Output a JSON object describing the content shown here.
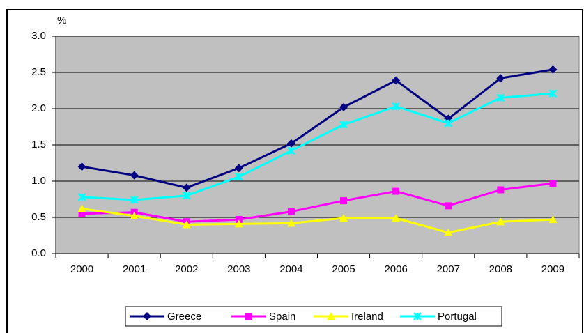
{
  "chart_data": {
    "type": "line",
    "y_label": "%",
    "categories": [
      "2000",
      "2001",
      "2002",
      "2003",
      "2004",
      "2005",
      "2006",
      "2007",
      "2008",
      "2009"
    ],
    "series": [
      {
        "name": "Greece",
        "color": "#000080",
        "marker": "diamond",
        "values": [
          1.2,
          1.08,
          0.91,
          1.18,
          1.52,
          2.02,
          2.39,
          1.86,
          2.42,
          2.54
        ]
      },
      {
        "name": "Spain",
        "color": "#ff00ff",
        "marker": "square",
        "values": [
          0.55,
          0.57,
          0.44,
          0.47,
          0.58,
          0.73,
          0.86,
          0.66,
          0.88,
          0.97
        ]
      },
      {
        "name": "Ireland",
        "color": "#ffff00",
        "marker": "triangle",
        "values": [
          0.62,
          0.52,
          0.4,
          0.41,
          0.42,
          0.49,
          0.49,
          0.29,
          0.44,
          0.47
        ]
      },
      {
        "name": "Portugal",
        "color": "#00ffff",
        "marker": "star",
        "values": [
          0.78,
          0.74,
          0.8,
          1.06,
          1.42,
          1.78,
          2.03,
          1.8,
          2.15,
          2.21
        ]
      }
    ],
    "ylim": [
      0,
      3
    ],
    "yticks": [
      {
        "value": 0,
        "label": "0.0"
      },
      0.5,
      {
        "value": 1,
        "label": "1.0"
      },
      1.5,
      {
        "value": 2,
        "label": "2.0"
      },
      2.5,
      {
        "value": 3,
        "label": "3.0"
      }
    ],
    "grid": true,
    "legend": "bottom",
    "background": "#c0c0c0"
  }
}
